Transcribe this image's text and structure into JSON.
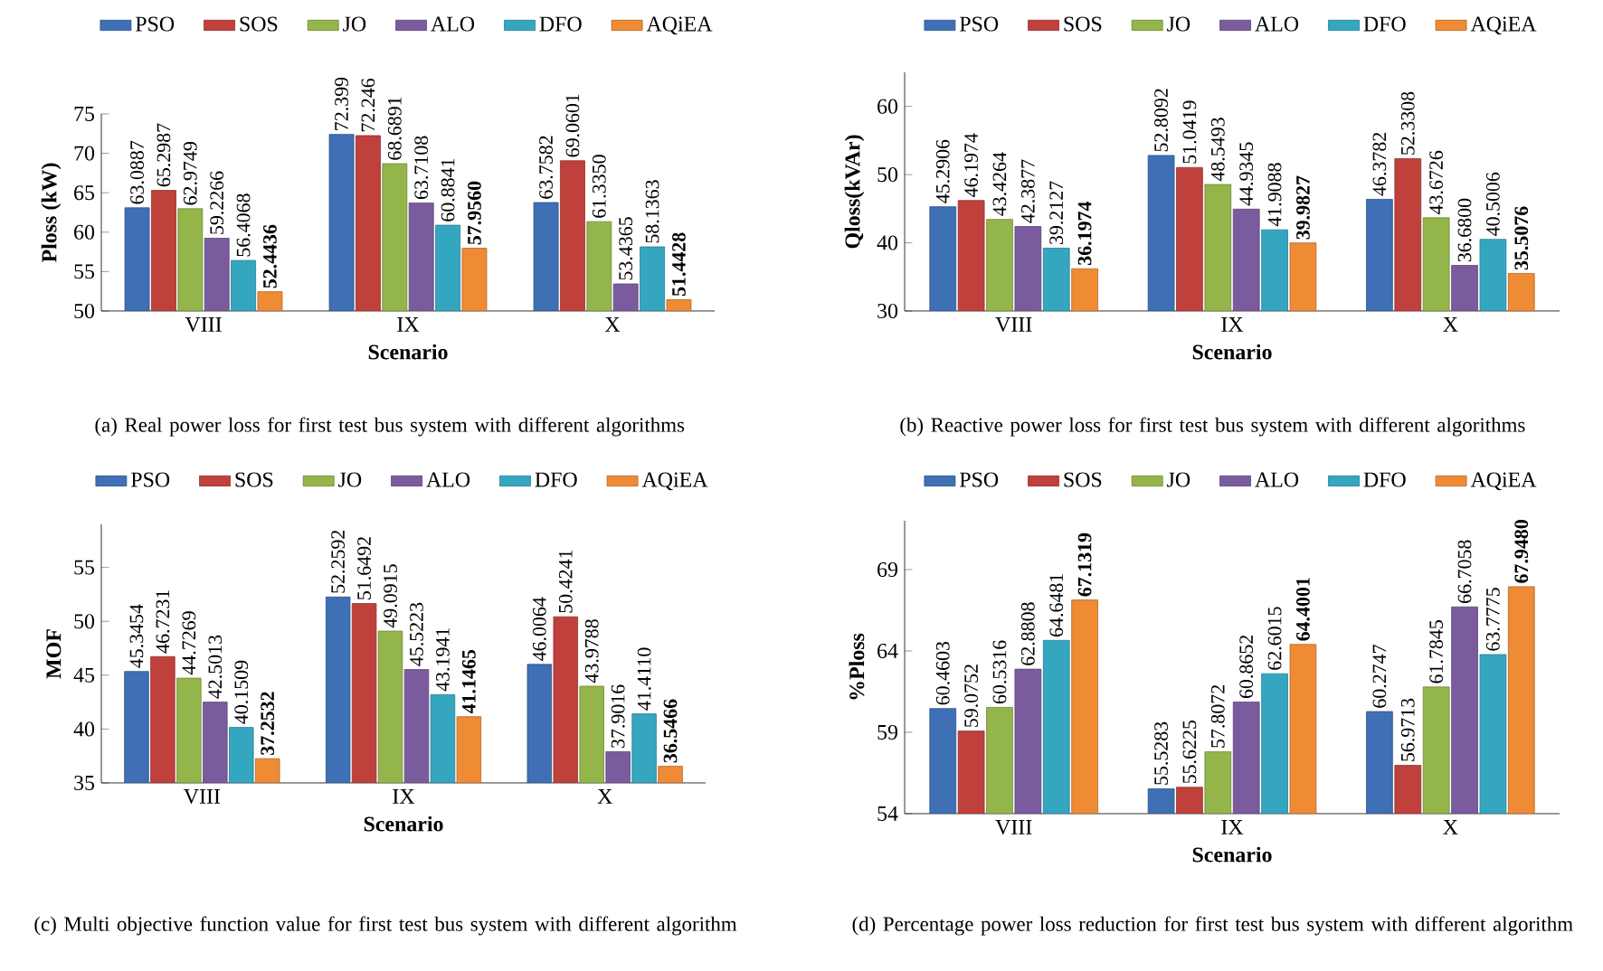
{
  "chart_data": [
    {
      "type": "bar",
      "title": "(a) Real power loss for first test bus system with different algorithms",
      "xlabel": "Scenario",
      "ylabel": "Ploss (kW)",
      "categories": [
        "VIII",
        "IX",
        "X"
      ],
      "ylim": [
        50,
        75
      ],
      "yticks": [
        50,
        55,
        60,
        65,
        70,
        75
      ],
      "legend": "top",
      "series": [
        {
          "name": "PSO",
          "color": "#3f6fb5",
          "values": [
            63.0887,
            72.399,
            63.7582
          ],
          "value_labels": [
            "63.0887",
            "72.399",
            "63.7582"
          ]
        },
        {
          "name": "SOS",
          "color": "#c0403c",
          "values": [
            65.2987,
            72.246,
            69.0601
          ],
          "value_labels": [
            "65.2987",
            "72.246",
            "69.0601"
          ]
        },
        {
          "name": "JO",
          "color": "#93b54a",
          "values": [
            62.9749,
            68.6891,
            61.335
          ],
          "value_labels": [
            "62.9749",
            "68.6891",
            "61.3350"
          ]
        },
        {
          "name": "ALO",
          "color": "#7a5c9e",
          "values": [
            59.2266,
            63.7108,
            53.4365
          ],
          "value_labels": [
            "59.2266",
            "63.7108",
            "53.4365"
          ]
        },
        {
          "name": "DFO",
          "color": "#35a6c0",
          "values": [
            56.4068,
            60.8841,
            58.1363
          ],
          "value_labels": [
            "56.4068",
            "60.8841",
            "58.1363"
          ]
        },
        {
          "name": "AQiEA",
          "color": "#ef8a35",
          "values": [
            52.4436,
            57.956,
            51.4428
          ],
          "value_labels": [
            "52.4436",
            "57.9560",
            "51.4428"
          ]
        }
      ]
    },
    {
      "type": "bar",
      "title": "(b) Reactive power loss for first test bus system with different algorithms",
      "xlabel": "Scenario",
      "ylabel": "Qloss(kVAr)",
      "categories": [
        "VIII",
        "IX",
        "X"
      ],
      "ylim": [
        30,
        65
      ],
      "yticks": [
        30,
        40,
        50,
        60
      ],
      "legend": "top",
      "series": [
        {
          "name": "PSO",
          "color": "#3f6fb5",
          "values": [
            45.2906,
            52.8092,
            46.3782
          ],
          "value_labels": [
            "45.2906",
            "52.8092",
            "46.3782"
          ]
        },
        {
          "name": "SOS",
          "color": "#c0403c",
          "values": [
            46.1974,
            51.0419,
            52.3308
          ],
          "value_labels": [
            "46.1974",
            "51.0419",
            "52.3308"
          ]
        },
        {
          "name": "JO",
          "color": "#93b54a",
          "values": [
            43.4264,
            48.5493,
            43.6726
          ],
          "value_labels": [
            "43.4264",
            "48.5493",
            "43.6726"
          ]
        },
        {
          "name": "ALO",
          "color": "#7a5c9e",
          "values": [
            42.3877,
            44.9345,
            36.68
          ],
          "value_labels": [
            "42.3877",
            "44.9345",
            "36.6800"
          ]
        },
        {
          "name": "DFO",
          "color": "#35a6c0",
          "values": [
            39.2127,
            41.9088,
            40.5006
          ],
          "value_labels": [
            "39.2127",
            "41.9088",
            "40.5006"
          ]
        },
        {
          "name": "AQiEA",
          "color": "#ef8a35",
          "values": [
            36.1974,
            39.9827,
            35.5076
          ],
          "value_labels": [
            "36.1974",
            "39.9827",
            "35.5076"
          ]
        }
      ]
    },
    {
      "type": "bar",
      "title": "(c) Multi objective function value for first test bus system with different algorithm",
      "xlabel": "Scenario",
      "ylabel": "MOF",
      "categories": [
        "VIII",
        "IX",
        "X"
      ],
      "ylim": [
        35,
        59
      ],
      "yticks": [
        35,
        40,
        45,
        50,
        55
      ],
      "legend": "top",
      "series": [
        {
          "name": "PSO",
          "color": "#3f6fb5",
          "values": [
            45.3454,
            52.2592,
            46.0064
          ],
          "value_labels": [
            "45.3454",
            "52.2592",
            "46.0064"
          ]
        },
        {
          "name": "SOS",
          "color": "#c0403c",
          "values": [
            46.7231,
            51.6492,
            50.4241
          ],
          "value_labels": [
            "46.7231",
            "51.6492",
            "50.4241"
          ]
        },
        {
          "name": "JO",
          "color": "#93b54a",
          "values": [
            44.7269,
            49.0915,
            43.9788
          ],
          "value_labels": [
            "44.7269",
            "49.0915",
            "43.9788"
          ]
        },
        {
          "name": "ALO",
          "color": "#7a5c9e",
          "values": [
            42.5013,
            45.5223,
            37.9016
          ],
          "value_labels": [
            "42.5013",
            "45.5223",
            "37.9016"
          ]
        },
        {
          "name": "DFO",
          "color": "#35a6c0",
          "values": [
            40.1509,
            43.1941,
            41.411
          ],
          "value_labels": [
            "40.1509",
            "43.1941",
            "41.4110"
          ]
        },
        {
          "name": "AQiEA",
          "color": "#ef8a35",
          "values": [
            37.2532,
            41.1465,
            36.5466
          ],
          "value_labels": [
            "37.2532",
            "41.1465",
            "36.5466"
          ]
        }
      ]
    },
    {
      "type": "bar",
      "title": "(d) Percentage power loss reduction for first test bus system with different algorithm",
      "xlabel": "Scenario",
      "ylabel": "%Ploss",
      "categories": [
        "VIII",
        "IX",
        "X"
      ],
      "ylim": [
        54,
        72
      ],
      "yticks": [
        54,
        59,
        64,
        69
      ],
      "legend": "top",
      "series": [
        {
          "name": "PSO",
          "color": "#3f6fb5",
          "values": [
            60.4603,
            55.5283,
            60.2747
          ],
          "value_labels": [
            "60.4603",
            "55.5283",
            "60.2747"
          ]
        },
        {
          "name": "SOS",
          "color": "#c0403c",
          "values": [
            59.0752,
            55.6225,
            56.9713
          ],
          "value_labels": [
            "59.0752",
            "55.6225",
            "56.9713"
          ]
        },
        {
          "name": "JO",
          "color": "#93b54a",
          "values": [
            60.5316,
            57.8072,
            61.7845
          ],
          "value_labels": [
            "60.5316",
            "57.8072",
            "61.7845"
          ]
        },
        {
          "name": "ALO",
          "color": "#7a5c9e",
          "values": [
            62.8808,
            60.8652,
            66.7058
          ],
          "value_labels": [
            "62.8808",
            "60.8652",
            "66.7058"
          ]
        },
        {
          "name": "DFO",
          "color": "#35a6c0",
          "values": [
            64.6481,
            62.6015,
            63.7775
          ],
          "value_labels": [
            "64.6481",
            "62.6015",
            "63.7775"
          ]
        },
        {
          "name": "AQiEA",
          "color": "#ef8a35",
          "values": [
            67.1319,
            64.4001,
            67.948
          ],
          "value_labels": [
            "67.1319",
            "64.4001",
            "67.9480"
          ]
        }
      ]
    }
  ]
}
